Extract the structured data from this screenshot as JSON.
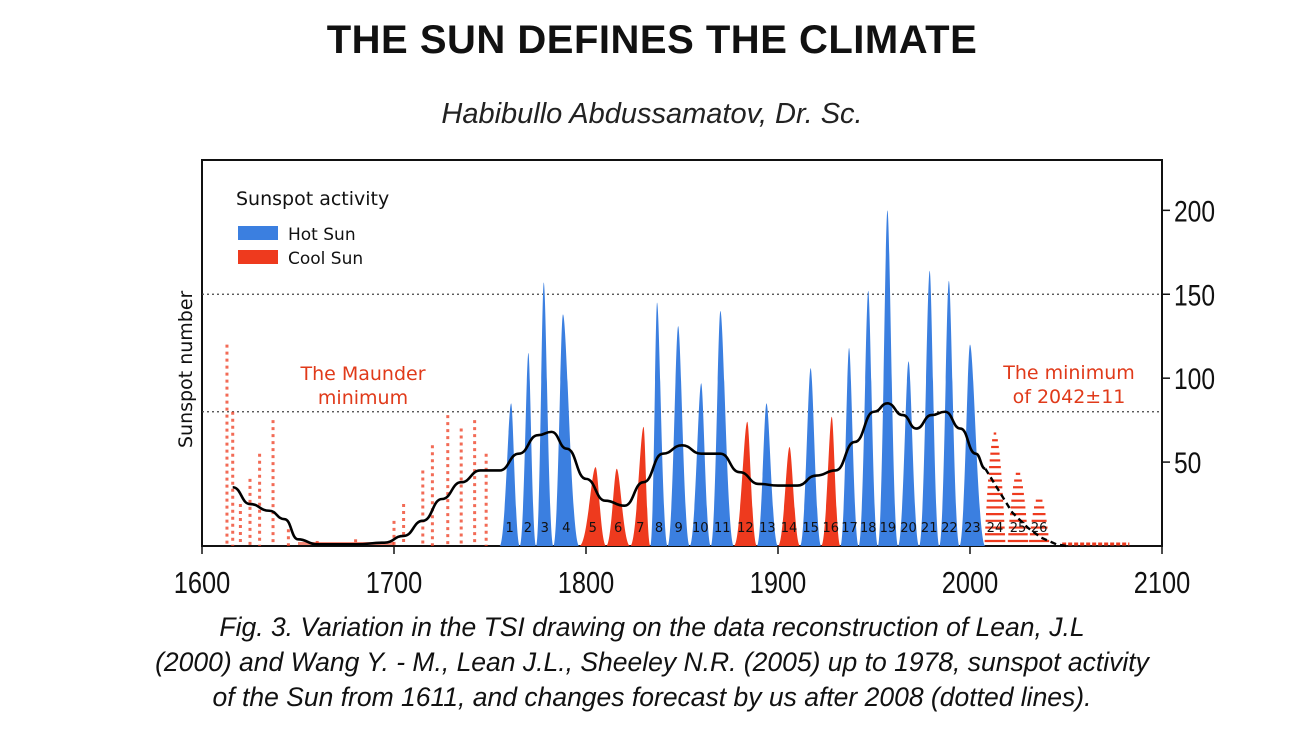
{
  "title": "THE SUN DEFINES THE CLIMATE",
  "author": "Habibullo Abdussamatov, Dr. Sc.",
  "caption_lines": [
    "Fig. 3. Variation in the TSI drawing on the data reconstruction of Lean, J.L",
    "(2000) and Wang Y. - M., Lean J.L., Sheeley N.R. (2005) up to 1978, sunspot activity",
    "of the Sun from 1611, and changes forecast by us after 2008 (dotted lines)."
  ],
  "colors": {
    "hot": "#3b7fe0",
    "cool": "#ee3a1e",
    "trend": "#000000"
  },
  "chart_data": {
    "type": "bar",
    "ylabel": "Sunspot number",
    "xlim": [
      1600,
      2100
    ],
    "ylim": [
      0,
      230
    ],
    "x_ticks": [
      "1600",
      "1700",
      "1800",
      "1900",
      "2000",
      "2100"
    ],
    "y_ticks": [
      "50",
      "100",
      "150",
      "200"
    ],
    "y_tick_values": [
      50,
      100,
      150,
      200
    ],
    "x_tick_values": [
      1600,
      1700,
      1800,
      1900,
      2000,
      2100
    ],
    "dotted_gridlines": [
      80,
      150
    ],
    "legend": {
      "title": "Sunspot activity",
      "position": "top-left",
      "items": [
        "Hot Sun",
        "Cool Sun"
      ]
    },
    "annotations": [
      {
        "text_lines": [
          "The Maunder",
          "minimum"
        ],
        "x": 1690,
        "y": 95
      },
      {
        "text_lines": [
          "The minimum",
          "of 2042±11"
        ],
        "x": 2037,
        "y": 95
      }
    ],
    "cycles": [
      {
        "label": "1",
        "peak_year": 1761,
        "peak": 85,
        "type": "hot"
      },
      {
        "label": "2",
        "peak_year": 1770,
        "peak": 115,
        "type": "hot"
      },
      {
        "label": "3",
        "peak_year": 1778,
        "peak": 157,
        "type": "hot"
      },
      {
        "label": "4",
        "peak_year": 1788,
        "peak": 138,
        "type": "hot"
      },
      {
        "label": "5",
        "peak_year": 1805,
        "peak": 47,
        "type": "cool"
      },
      {
        "label": "6",
        "peak_year": 1816,
        "peak": 46,
        "type": "cool"
      },
      {
        "label": "7",
        "peak_year": 1830,
        "peak": 71,
        "type": "cool"
      },
      {
        "label": "8",
        "peak_year": 1837,
        "peak": 145,
        "type": "hot"
      },
      {
        "label": "9",
        "peak_year": 1848,
        "peak": 131,
        "type": "hot"
      },
      {
        "label": "10",
        "peak_year": 1860,
        "peak": 97,
        "type": "hot"
      },
      {
        "label": "11",
        "peak_year": 1870,
        "peak": 140,
        "type": "hot"
      },
      {
        "label": "12",
        "peak_year": 1884,
        "peak": 74,
        "type": "cool"
      },
      {
        "label": "13",
        "peak_year": 1894,
        "peak": 85,
        "type": "hot"
      },
      {
        "label": "14",
        "peak_year": 1906,
        "peak": 59,
        "type": "cool"
      },
      {
        "label": "15",
        "peak_year": 1917,
        "peak": 106,
        "type": "hot"
      },
      {
        "label": "16",
        "peak_year": 1928,
        "peak": 77,
        "type": "cool"
      },
      {
        "label": "17",
        "peak_year": 1937,
        "peak": 118,
        "type": "hot"
      },
      {
        "label": "18",
        "peak_year": 1947,
        "peak": 152,
        "type": "hot"
      },
      {
        "label": "19",
        "peak_year": 1957,
        "peak": 200,
        "type": "hot"
      },
      {
        "label": "20",
        "peak_year": 1968,
        "peak": 110,
        "type": "hot"
      },
      {
        "label": "21",
        "peak_year": 1979,
        "peak": 164,
        "type": "hot"
      },
      {
        "label": "22",
        "peak_year": 1989,
        "peak": 158,
        "type": "hot"
      },
      {
        "label": "23",
        "peak_year": 2000,
        "peak": 120,
        "type": "hot"
      }
    ],
    "forecast_cycles": [
      {
        "label": "24",
        "peak_year": 2013,
        "peak": 68
      },
      {
        "label": "25",
        "peak_year": 2025,
        "peak": 45
      },
      {
        "label": "26",
        "peak_year": 2036,
        "peak": 30
      }
    ],
    "early_activity": [
      {
        "year": 1613,
        "value": 120
      },
      {
        "year": 1616,
        "value": 80
      },
      {
        "year": 1620,
        "value": 25
      },
      {
        "year": 1625,
        "value": 40
      },
      {
        "year": 1630,
        "value": 55
      },
      {
        "year": 1637,
        "value": 75
      },
      {
        "year": 1645,
        "value": 10
      },
      {
        "year": 1660,
        "value": 3
      },
      {
        "year": 1680,
        "value": 4
      },
      {
        "year": 1700,
        "value": 15
      },
      {
        "year": 1705,
        "value": 25
      },
      {
        "year": 1715,
        "value": 45
      },
      {
        "year": 1720,
        "value": 60
      },
      {
        "year": 1728,
        "value": 78
      },
      {
        "year": 1735,
        "value": 70
      },
      {
        "year": 1742,
        "value": 75
      },
      {
        "year": 1748,
        "value": 55
      }
    ],
    "trend_line": [
      [
        1616,
        35
      ],
      [
        1625,
        25
      ],
      [
        1635,
        21
      ],
      [
        1643,
        16
      ],
      [
        1650,
        4
      ],
      [
        1660,
        1
      ],
      [
        1680,
        1
      ],
      [
        1695,
        2
      ],
      [
        1705,
        6
      ],
      [
        1715,
        15
      ],
      [
        1725,
        28
      ],
      [
        1735,
        38
      ],
      [
        1745,
        45
      ],
      [
        1755,
        45
      ],
      [
        1765,
        55
      ],
      [
        1775,
        66
      ],
      [
        1782,
        68
      ],
      [
        1790,
        58
      ],
      [
        1800,
        40
      ],
      [
        1810,
        27
      ],
      [
        1820,
        24
      ],
      [
        1830,
        38
      ],
      [
        1840,
        55
      ],
      [
        1850,
        60
      ],
      [
        1860,
        55
      ],
      [
        1870,
        55
      ],
      [
        1880,
        44
      ],
      [
        1890,
        37
      ],
      [
        1900,
        36
      ],
      [
        1910,
        36
      ],
      [
        1920,
        42
      ],
      [
        1930,
        45
      ],
      [
        1940,
        62
      ],
      [
        1950,
        80
      ],
      [
        1957,
        85
      ],
      [
        1965,
        78
      ],
      [
        1972,
        70
      ],
      [
        1980,
        78
      ],
      [
        1987,
        80
      ],
      [
        1995,
        70
      ],
      [
        2003,
        55
      ],
      [
        2008,
        46
      ]
    ],
    "forecast_line": [
      [
        2008,
        46
      ],
      [
        2015,
        33
      ],
      [
        2022,
        20
      ],
      [
        2030,
        11
      ],
      [
        2037,
        5
      ],
      [
        2045,
        1
      ],
      [
        2050,
        0
      ]
    ]
  }
}
